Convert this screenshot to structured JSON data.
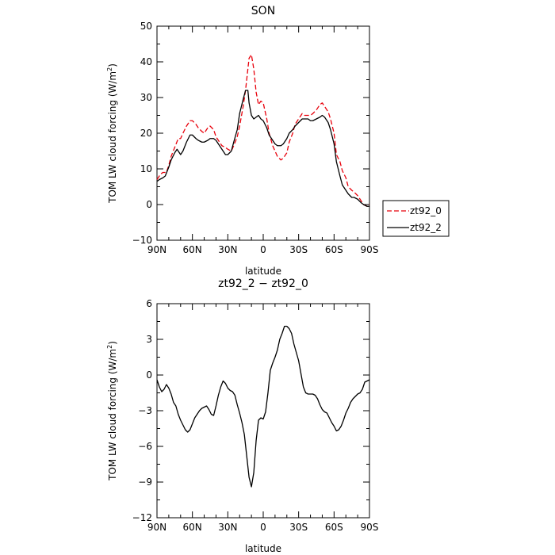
{
  "chart_data": [
    {
      "type": "line",
      "title": "SON",
      "xlabel": "latitude",
      "ylabel": "TOM LW cloud forcing (W/m",
      "ylabel_sup": "2",
      "ylabel_tail": ")",
      "xlim": [
        90,
        -90
      ],
      "ylim": [
        -10,
        50
      ],
      "x_ticks": [
        90,
        60,
        30,
        0,
        -30,
        -60,
        -90
      ],
      "x_tick_labels": [
        "90N",
        "60N",
        "30N",
        "0",
        "30S",
        "60S",
        "90S"
      ],
      "y_ticks": [
        -10,
        0,
        10,
        20,
        30,
        40,
        50
      ],
      "y_tick_labels": [
        "−10",
        "0",
        "10",
        "20",
        "30",
        "40",
        "50"
      ],
      "legend": "outside-right",
      "series": [
        {
          "name": "zt92_0",
          "color": "#e8000b",
          "dash": "dashed",
          "x": [
            90,
            87,
            85,
            82,
            80,
            78,
            75,
            72,
            70,
            68,
            65,
            62,
            60,
            57,
            55,
            52,
            50,
            47,
            45,
            42,
            40,
            37,
            35,
            32,
            30,
            27,
            25,
            22,
            20,
            17,
            15,
            13,
            12,
            10,
            8,
            6,
            4,
            2,
            0,
            -3,
            -5,
            -8,
            -10,
            -12,
            -15,
            -17,
            -20,
            -22,
            -25,
            -27,
            -30,
            -33,
            -35,
            -38,
            -40,
            -42,
            -45,
            -48,
            -50,
            -52,
            -55,
            -57,
            -60,
            -62,
            -65,
            -67,
            -70,
            -72,
            -75,
            -77,
            -80,
            -83,
            -85,
            -88,
            -90
          ],
          "y": [
            7,
            8.5,
            9,
            9,
            11,
            13.5,
            16,
            18.5,
            18.5,
            20,
            22,
            23.5,
            23.5,
            22.5,
            21.5,
            20.5,
            20,
            21.5,
            22,
            21,
            19,
            17.5,
            16.5,
            16,
            15.5,
            15,
            16.5,
            19,
            22,
            27.5,
            32,
            38,
            41,
            42,
            38,
            31.5,
            28,
            29,
            28.5,
            24,
            20,
            16.5,
            15,
            13.5,
            12.5,
            13,
            14.5,
            17.5,
            20,
            22.5,
            24,
            25.5,
            25,
            25,
            25,
            25.5,
            26.5,
            28,
            28.5,
            27.5,
            26,
            24,
            20,
            14,
            12,
            9.5,
            7.5,
            5,
            4,
            3.5,
            2.5,
            1,
            0,
            -0.5,
            0
          ]
        },
        {
          "name": "zt92_2",
          "color": "#000000",
          "dash": "solid",
          "x": [
            90,
            88,
            85,
            83,
            80,
            78,
            75,
            73,
            70,
            68,
            65,
            62,
            60,
            57,
            55,
            52,
            50,
            47,
            45,
            42,
            40,
            37,
            35,
            32,
            30,
            27,
            25,
            22,
            20,
            17,
            15,
            13,
            12,
            10,
            8,
            6,
            4,
            2,
            0,
            -3,
            -5,
            -8,
            -10,
            -12,
            -15,
            -17,
            -20,
            -22,
            -25,
            -27,
            -30,
            -33,
            -35,
            -38,
            -40,
            -42,
            -45,
            -48,
            -50,
            -52,
            -55,
            -57,
            -60,
            -62,
            -65,
            -67,
            -70,
            -72,
            -75,
            -77,
            -80,
            -83,
            -85,
            -88,
            -90
          ],
          "y": [
            6.5,
            7,
            7.5,
            8,
            10.5,
            12.5,
            14.5,
            15.5,
            14,
            15,
            17.5,
            19.5,
            19.5,
            18.5,
            18,
            17.5,
            17.5,
            18,
            18.5,
            18.5,
            18,
            16.5,
            15.5,
            14,
            14,
            15,
            17.5,
            21,
            25.5,
            29.5,
            32,
            32,
            28.5,
            25,
            24,
            24.5,
            25,
            24,
            23.5,
            21.5,
            19.5,
            18,
            17,
            16.5,
            16.5,
            17,
            18.5,
            20,
            21,
            22,
            23,
            24,
            24,
            24,
            23.5,
            23.5,
            24,
            24.5,
            25,
            24.5,
            23,
            21,
            17,
            12,
            8,
            5.5,
            4,
            3,
            2,
            2,
            1.5,
            0.5,
            0,
            -0.5,
            -0.5
          ]
        }
      ]
    },
    {
      "type": "line",
      "title": "zt92_2 − zt92_0",
      "xlabel": "latitude",
      "ylabel": "TOM LW cloud forcing (W/m",
      "ylabel_sup": "2",
      "ylabel_tail": ")",
      "xlim": [
        90,
        -90
      ],
      "ylim": [
        -12,
        6
      ],
      "x_ticks": [
        90,
        60,
        30,
        0,
        -30,
        -60,
        -90
      ],
      "x_tick_labels": [
        "90N",
        "60N",
        "30N",
        "0",
        "30S",
        "60S",
        "90S"
      ],
      "y_ticks": [
        -12,
        -9,
        -6,
        -3,
        0,
        3,
        6
      ],
      "y_tick_labels": [
        "−12",
        "−9",
        "−6",
        "−3",
        "0",
        "3",
        "6"
      ],
      "series": [
        {
          "color": "#000000",
          "dash": "solid",
          "x": [
            90,
            88,
            86,
            84,
            82,
            80,
            78,
            76,
            74,
            72,
            70,
            68,
            66,
            64,
            62,
            60,
            58,
            56,
            54,
            52,
            50,
            48,
            46,
            44,
            42,
            40,
            38,
            36,
            34,
            32,
            30,
            28,
            26,
            24,
            22,
            20,
            18,
            16,
            14,
            12,
            10,
            8,
            6,
            4,
            2,
            0,
            -2,
            -4,
            -6,
            -8,
            -10,
            -12,
            -14,
            -16,
            -18,
            -20,
            -22,
            -24,
            -26,
            -28,
            -30,
            -32,
            -34,
            -36,
            -38,
            -40,
            -42,
            -44,
            -46,
            -48,
            -50,
            -52,
            -54,
            -56,
            -58,
            -60,
            -62,
            -64,
            -66,
            -68,
            -70,
            -72,
            -74,
            -76,
            -78,
            -80,
            -82,
            -84,
            -86,
            -88,
            -90
          ],
          "y": [
            -0.4,
            -1,
            -1.4,
            -1.2,
            -0.8,
            -1.1,
            -1.6,
            -2.3,
            -2.6,
            -3.3,
            -3.8,
            -4.2,
            -4.6,
            -4.8,
            -4.6,
            -4.1,
            -3.6,
            -3.3,
            -3,
            -2.8,
            -2.7,
            -2.6,
            -2.9,
            -3.3,
            -3.4,
            -2.6,
            -1.7,
            -1,
            -0.5,
            -0.7,
            -1.1,
            -1.3,
            -1.4,
            -1.7,
            -2.5,
            -3.2,
            -4,
            -5,
            -6.8,
            -8.6,
            -9.4,
            -8.2,
            -5.5,
            -3.8,
            -3.6,
            -3.7,
            -3.1,
            -1.5,
            0.4,
            1,
            1.5,
            2.1,
            3,
            3.5,
            4.1,
            4.1,
            3.9,
            3.5,
            2.6,
            1.9,
            1.2,
            0.1,
            -1,
            -1.5,
            -1.6,
            -1.6,
            -1.6,
            -1.7,
            -2,
            -2.5,
            -2.9,
            -3.1,
            -3.2,
            -3.6,
            -4,
            -4.3,
            -4.7,
            -4.6,
            -4.3,
            -3.8,
            -3.2,
            -2.8,
            -2.3,
            -2,
            -1.8,
            -1.6,
            -1.5,
            -1.2,
            -0.6,
            -0.5,
            -0.4
          ]
        }
      ]
    }
  ]
}
